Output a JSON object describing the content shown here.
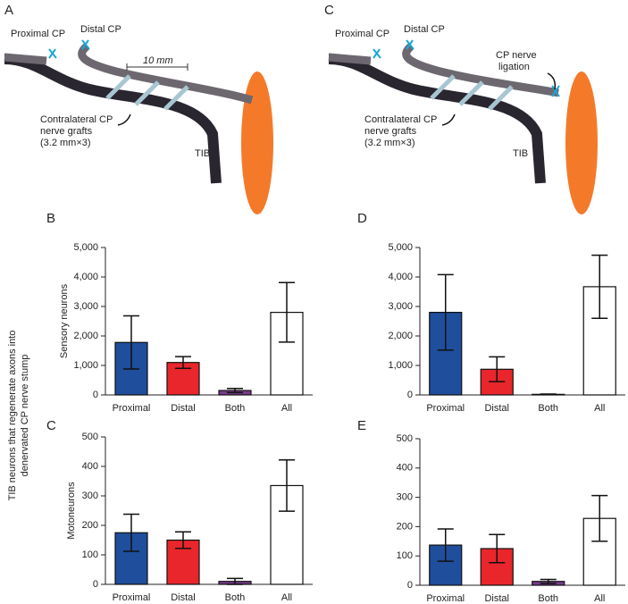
{
  "diagrams": [
    {
      "panel": "A",
      "labels": [
        "Proximal CP",
        "Distal CP",
        "10 mm",
        "Contralateral CP",
        "nerve grafts",
        "(3.2 mm×3)",
        "TIB"
      ]
    },
    {
      "panel": "C",
      "labels": [
        "Proximal CP",
        "Distal CP",
        "CP nerve",
        "ligation",
        "Contralateral CP",
        "nerve grafts",
        "(3.2 mm×3)",
        "TIB"
      ]
    }
  ],
  "shared_ylabel": [
    "TIB neurons that regenerate axons into",
    "denervated CP nerve stump"
  ],
  "chart_data": [
    {
      "type": "bar",
      "panel": "B",
      "ylabel": "Sensory neurons",
      "categories": [
        "Proximal",
        "Distal",
        "Both",
        "All"
      ],
      "values": [
        1780,
        1100,
        150,
        2800
      ],
      "errors": [
        900,
        200,
        70,
        1010
      ],
      "colors": [
        "#1f4e9c",
        "#e8262b",
        "#7a3a8c",
        "#ffffff"
      ],
      "ylim": [
        0,
        5000
      ],
      "yticks": [
        0,
        {
          "value": 1000,
          "label": "1,000"
        },
        {
          "value": 2000,
          "label": "2,000"
        },
        {
          "value": 3000,
          "label": "3,000"
        },
        {
          "value": 4000,
          "label": "4,000"
        },
        {
          "value": 5000,
          "label": "5,000"
        }
      ]
    },
    {
      "type": "bar",
      "panel": "D",
      "categories": [
        "Proximal",
        "Distal",
        "Both",
        "All"
      ],
      "values": [
        2800,
        870,
        20,
        3670
      ],
      "errors": [
        1280,
        420,
        10,
        1070
      ],
      "colors": [
        "#1f4e9c",
        "#e8262b",
        "#7a3a8c",
        "#ffffff"
      ],
      "ylim": [
        0,
        5000
      ],
      "yticks": [
        0,
        {
          "value": 1000,
          "label": "1,000"
        },
        {
          "value": 2000,
          "label": "2,000"
        },
        {
          "value": 3000,
          "label": "3,000"
        },
        {
          "value": 4000,
          "label": "4,000"
        },
        {
          "value": 5000,
          "label": "5,000"
        }
      ]
    },
    {
      "type": "bar",
      "panel": "C",
      "ylabel": "Motoneurons",
      "categories": [
        "Proximal",
        "Distal",
        "Both",
        "All"
      ],
      "values": [
        175,
        150,
        10,
        335
      ],
      "errors": [
        63,
        28,
        10,
        87
      ],
      "colors": [
        "#1f4e9c",
        "#e8262b",
        "#7a3a8c",
        "#ffffff"
      ],
      "ylim": [
        0,
        500
      ],
      "yticks": [
        0,
        100,
        200,
        300,
        400,
        500
      ]
    },
    {
      "type": "bar",
      "panel": "E",
      "categories": [
        "Proximal",
        "Distal",
        "Both",
        "All"
      ],
      "values": [
        137,
        125,
        13,
        228
      ],
      "errors": [
        55,
        48,
        7,
        78
      ],
      "colors": [
        "#1f4e9c",
        "#e8262b",
        "#7a3a8c",
        "#ffffff"
      ],
      "ylim": [
        0,
        500
      ],
      "yticks": [
        0,
        100,
        200,
        300,
        400,
        500
      ]
    }
  ]
}
